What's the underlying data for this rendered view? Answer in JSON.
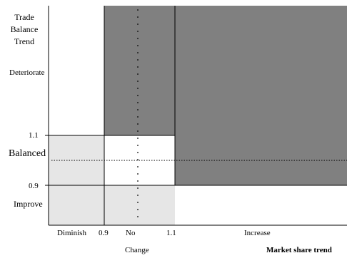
{
  "y_axis": {
    "title_lines": [
      "Trade",
      "Balance",
      "Trend"
    ],
    "deteriorate": "Deteriorate",
    "tick_upper": "1.1",
    "balanced": "Balanced",
    "tick_lower": "0.9",
    "improve": "Improve"
  },
  "x_axis": {
    "diminish": "Diminish",
    "tick_lower": "0.9",
    "no_change_line1": "No",
    "no_change_line2": "Change",
    "tick_upper": "1.1",
    "increase": "Increase",
    "title": "Market share trend"
  },
  "colors": {
    "dark_zone": "#808080",
    "light_zone": "#e6e6e6",
    "white_zone": "#ffffff",
    "line": "#000000"
  }
}
